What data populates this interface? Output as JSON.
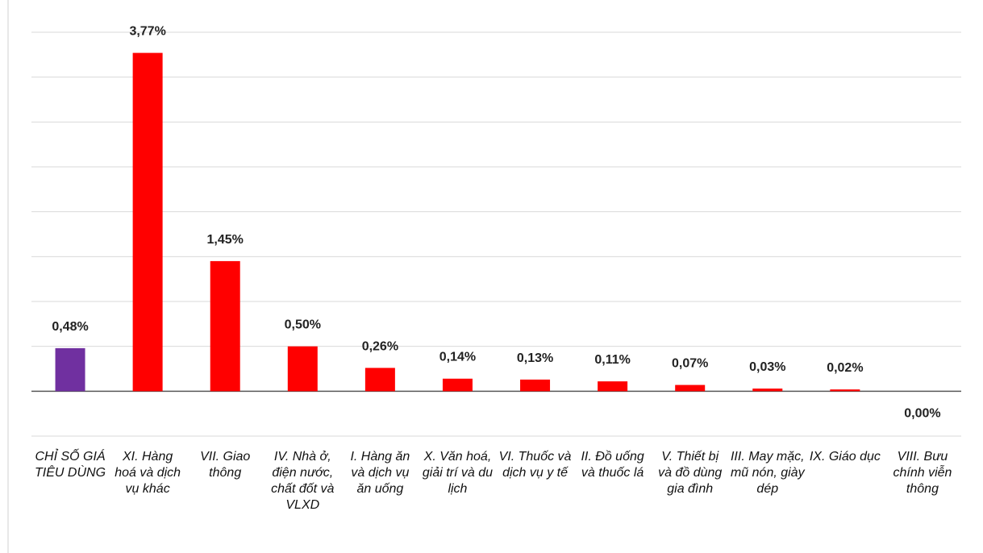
{
  "chart_data": {
    "type": "bar",
    "categories": [
      "CHỈ SỐ GIÁ TIÊU DÙNG",
      "XI. Hàng hoá và dịch vụ khác",
      "VII. Giao thông",
      "IV. Nhà ở, điện nước, chất đốt và VLXD",
      "I. Hàng ăn và dịch vụ ăn uống",
      "X. Văn hoá, giải trí và du lịch",
      "VI. Thuốc và dịch vụ y tế",
      "II. Đồ uống và thuốc lá",
      "V. Thiết bị và đồ dùng gia đình",
      "III. May mặc, mũ nón, giày dép",
      "IX. Giáo dục",
      "VIII. Bưu chính viễn thông"
    ],
    "values": [
      0.48,
      3.77,
      1.45,
      0.5,
      0.26,
      0.14,
      0.13,
      0.11,
      0.07,
      0.03,
      0.02,
      0.0
    ],
    "value_labels": [
      "0,48%",
      "3,77%",
      "1,45%",
      "0,50%",
      "0,26%",
      "0,14%",
      "0,13%",
      "0,11%",
      "0,07%",
      "0,03%",
      "0,02%",
      "0,00%"
    ],
    "colors": [
      "#7030a0",
      "#ff0000",
      "#ff0000",
      "#ff0000",
      "#ff0000",
      "#ff0000",
      "#ff0000",
      "#ff0000",
      "#ff0000",
      "#ff0000",
      "#ff0000",
      "#ff0000"
    ],
    "ylim": [
      -0.5,
      4
    ],
    "yticks": [
      -0.5,
      0,
      0.5,
      1,
      1.5,
      2,
      2.5,
      3,
      3.5,
      4
    ],
    "grid": true
  }
}
